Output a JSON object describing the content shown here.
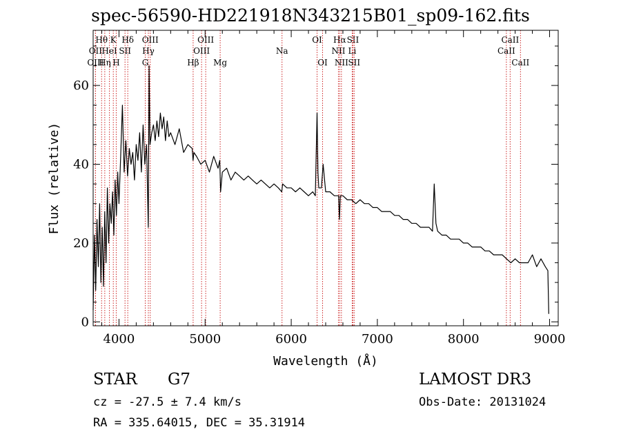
{
  "title": "spec-56590-HD221918N343215B01_sp09-162.fits",
  "info": {
    "object_class": "STAR",
    "subclass": "G7",
    "survey": "LAMOST DR3",
    "cz": "cz = -27.5 ± 7.4 km/s",
    "obs_date": "Obs-Date: 20131024",
    "ra_dec": "RA = 335.64015, DEC =  35.31914"
  },
  "colors": {
    "line": "#000000",
    "marker": "#cc2222",
    "background": "#ffffff"
  },
  "chart_data": {
    "type": "line",
    "title": "spec-56590-HD221918N343215B01_sp09-162.fits",
    "xlabel": "Wavelength (Å)",
    "ylabel": "Flux (relative)",
    "xlim": [
      3700,
      9100
    ],
    "ylim": [
      -1,
      74
    ],
    "x_ticks": [
      4000,
      5000,
      6000,
      7000,
      8000,
      9000
    ],
    "x_tick_labels": [
      "4000",
      "5000",
      "6000",
      "7000",
      "8000",
      "9000"
    ],
    "y_ticks": [
      0,
      20,
      40,
      60
    ],
    "y_tick_labels": [
      "0",
      "20",
      "40",
      "60"
    ],
    "x_minor_step": 200,
    "y_minor_step": 5,
    "series": [
      {
        "name": "flux",
        "x": [
          3700,
          3715,
          3730,
          3745,
          3760,
          3775,
          3790,
          3805,
          3820,
          3835,
          3850,
          3865,
          3880,
          3895,
          3910,
          3925,
          3940,
          3955,
          3970,
          3985,
          4000,
          4020,
          4040,
          4060,
          4080,
          4100,
          4120,
          4140,
          4160,
          4180,
          4200,
          4220,
          4240,
          4260,
          4280,
          4300,
          4320,
          4340,
          4350,
          4360,
          4380,
          4400,
          4420,
          4440,
          4460,
          4480,
          4500,
          4520,
          4540,
          4560,
          4580,
          4600,
          4650,
          4700,
          4750,
          4800,
          4850,
          4860,
          4870,
          4900,
          4950,
          5000,
          5050,
          5100,
          5150,
          5170,
          5180,
          5200,
          5250,
          5300,
          5350,
          5400,
          5450,
          5500,
          5550,
          5600,
          5650,
          5700,
          5750,
          5800,
          5850,
          5890,
          5900,
          5950,
          6000,
          6050,
          6100,
          6150,
          6200,
          6250,
          6280,
          6300,
          6310,
          6320,
          6350,
          6370,
          6400,
          6450,
          6500,
          6550,
          6560,
          6570,
          6600,
          6650,
          6700,
          6750,
          6800,
          6850,
          6900,
          6950,
          7000,
          7050,
          7100,
          7150,
          7200,
          7250,
          7300,
          7350,
          7400,
          7450,
          7500,
          7550,
          7600,
          7640,
          7660,
          7680,
          7700,
          7750,
          7800,
          7850,
          7900,
          7950,
          8000,
          8050,
          8100,
          8150,
          8200,
          8250,
          8300,
          8350,
          8400,
          8450,
          8500,
          8550,
          8600,
          8650,
          8700,
          8750,
          8800,
          8850,
          8900,
          8950,
          8980,
          8990
        ],
        "y": [
          3,
          22,
          8,
          26,
          14,
          30,
          10,
          24,
          9,
          28,
          15,
          34,
          20,
          30,
          25,
          33,
          22,
          36,
          27,
          38,
          30,
          42,
          55,
          38,
          46,
          37,
          44,
          40,
          43,
          36,
          45,
          41,
          48,
          38,
          50,
          40,
          45,
          24,
          65,
          45,
          48,
          50,
          46,
          51,
          47,
          53,
          49,
          52,
          46,
          51,
          47,
          48,
          45,
          49,
          43,
          45,
          44,
          41,
          43,
          42,
          40,
          41,
          38,
          42,
          39,
          41,
          33,
          38,
          39,
          36,
          38,
          37,
          36,
          37,
          36,
          35,
          36,
          35,
          34,
          35,
          34,
          33,
          35,
          34,
          34,
          33,
          34,
          33,
          32,
          33,
          32,
          53,
          38,
          34,
          34,
          40,
          33,
          33,
          32,
          32,
          26,
          32,
          32,
          31,
          31,
          30,
          31,
          30,
          30,
          29,
          29,
          28,
          28,
          28,
          27,
          27,
          26,
          26,
          25,
          25,
          24,
          24,
          24,
          23,
          35,
          25,
          23,
          22,
          22,
          21,
          21,
          21,
          20,
          20,
          19,
          19,
          19,
          18,
          18,
          17,
          17,
          17,
          16,
          15,
          16,
          15,
          15,
          15,
          17,
          14,
          16,
          14,
          13,
          2
        ]
      }
    ],
    "line_markers": [
      {
        "label": "Hθ",
        "wavelength": 3798,
        "row": 0
      },
      {
        "label": "K",
        "wavelength": 3934,
        "row": 0
      },
      {
        "label": "Hδ",
        "wavelength": 4102,
        "row": 0
      },
      {
        "label": "OII",
        "wavelength": 3727,
        "row": 1
      },
      {
        "label": "HeI",
        "wavelength": 3889,
        "row": 1
      },
      {
        "label": "SII",
        "wavelength": 4070,
        "row": 1
      },
      {
        "label": "OIII",
        "wavelength": 3727,
        "row": 2
      },
      {
        "label": "Hη",
        "wavelength": 3835,
        "row": 2
      },
      {
        "label": "H",
        "wavelength": 3968,
        "row": 2
      },
      {
        "label": "OIII",
        "wavelength": 4363,
        "row": 0
      },
      {
        "label": "Hγ",
        "wavelength": 4341,
        "row": 1
      },
      {
        "label": "G",
        "wavelength": 4305,
        "row": 2
      },
      {
        "label": "Hβ",
        "wavelength": 4861,
        "row": 2
      },
      {
        "label": "OIII",
        "wavelength": 5007,
        "row": 0
      },
      {
        "label": "OIII",
        "wavelength": 4959,
        "row": 1
      },
      {
        "label": "Mg",
        "wavelength": 5175,
        "row": 2
      },
      {
        "label": "Na",
        "wavelength": 5893,
        "row": 1
      },
      {
        "label": "OI",
        "wavelength": 6300,
        "row": 0
      },
      {
        "label": "OI",
        "wavelength": 6364,
        "row": 2
      },
      {
        "label": "Hα",
        "wavelength": 6563,
        "row": 0
      },
      {
        "label": "SII",
        "wavelength": 6716,
        "row": 0
      },
      {
        "label": "NII",
        "wavelength": 6548,
        "row": 1
      },
      {
        "label": "Li",
        "wavelength": 6708,
        "row": 1
      },
      {
        "label": "NII",
        "wavelength": 6583,
        "row": 2
      },
      {
        "label": "SII",
        "wavelength": 6731,
        "row": 2
      },
      {
        "label": "CaII",
        "wavelength": 8542,
        "row": 0
      },
      {
        "label": "CaII",
        "wavelength": 8498,
        "row": 1
      },
      {
        "label": "CaII",
        "wavelength": 8662,
        "row": 2
      }
    ]
  }
}
